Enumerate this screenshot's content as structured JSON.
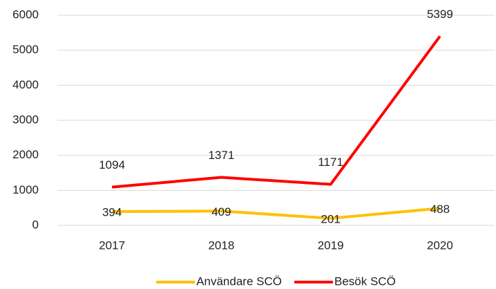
{
  "chart_data": {
    "type": "line",
    "categories": [
      "2017",
      "2018",
      "2019",
      "2020"
    ],
    "series": [
      {
        "name": "Användare SCÖ",
        "color": "#FFC000",
        "values": [
          394,
          409,
          201,
          488
        ]
      },
      {
        "name": "Besök SCÖ",
        "color": "#FF0000",
        "values": [
          1094,
          1371,
          1171,
          5399
        ]
      }
    ],
    "ylim": [
      0,
      6000
    ],
    "yticks": [
      0,
      1000,
      2000,
      3000,
      4000,
      5000,
      6000
    ],
    "grid": true,
    "legend": "bottom"
  }
}
